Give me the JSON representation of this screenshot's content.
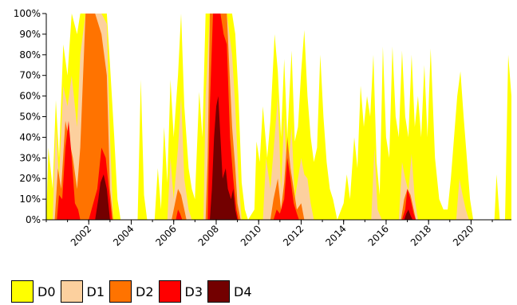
{
  "chart_data": {
    "type": "area",
    "stacked": false,
    "x_unit": "year",
    "xlim": [
      2000.0,
      2021.9
    ],
    "ylim": [
      0,
      100
    ],
    "y_ticks": [
      "0%",
      "10%",
      "20%",
      "30%",
      "40%",
      "50%",
      "60%",
      "70%",
      "80%",
      "90%",
      "100%"
    ],
    "x_ticks": [
      "2002",
      "2004",
      "2006",
      "2008",
      "2010",
      "2012",
      "2014",
      "2016",
      "2018",
      "2020"
    ],
    "grid": false,
    "legend_position": "bottom",
    "legend": [
      "D0",
      "D1",
      "D2",
      "D3",
      "D4"
    ],
    "colors": [
      "#ffff00",
      "#fcd09e",
      "#ff7300",
      "#ff0000",
      "#730000"
    ],
    "series": [
      {
        "name": "D0",
        "points": [
          [
            2000.0,
            0
          ],
          [
            2000.1,
            35
          ],
          [
            2000.3,
            15
          ],
          [
            2000.45,
            58
          ],
          [
            2000.6,
            30
          ],
          [
            2000.8,
            85
          ],
          [
            2001.0,
            70
          ],
          [
            2001.2,
            100
          ],
          [
            2001.45,
            90
          ],
          [
            2001.6,
            100
          ],
          [
            2001.85,
            100
          ],
          [
            2002.0,
            100
          ],
          [
            2002.3,
            100
          ],
          [
            2002.6,
            100
          ],
          [
            2002.85,
            100
          ],
          [
            2003.0,
            75
          ],
          [
            2003.2,
            40
          ],
          [
            2003.35,
            10
          ],
          [
            2003.5,
            0
          ],
          [
            2004.3,
            0
          ],
          [
            2004.45,
            68
          ],
          [
            2004.6,
            12
          ],
          [
            2004.75,
            0
          ],
          [
            2005.1,
            0
          ],
          [
            2005.25,
            25
          ],
          [
            2005.4,
            5
          ],
          [
            2005.55,
            45
          ],
          [
            2005.7,
            18
          ],
          [
            2005.85,
            68
          ],
          [
            2006.0,
            40
          ],
          [
            2006.2,
            70
          ],
          [
            2006.35,
            100
          ],
          [
            2006.5,
            55
          ],
          [
            2006.7,
            25
          ],
          [
            2006.85,
            15
          ],
          [
            2007.0,
            10
          ],
          [
            2007.2,
            62
          ],
          [
            2007.35,
            40
          ],
          [
            2007.5,
            100
          ],
          [
            2007.7,
            100
          ],
          [
            2008.0,
            100
          ],
          [
            2008.3,
            100
          ],
          [
            2008.5,
            100
          ],
          [
            2008.75,
            100
          ],
          [
            2008.9,
            90
          ],
          [
            2009.05,
            60
          ],
          [
            2009.2,
            18
          ],
          [
            2009.35,
            5
          ],
          [
            2009.5,
            0
          ],
          [
            2009.8,
            5
          ],
          [
            2009.9,
            38
          ],
          [
            2010.05,
            28
          ],
          [
            2010.2,
            55
          ],
          [
            2010.4,
            30
          ],
          [
            2010.55,
            48
          ],
          [
            2010.75,
            90
          ],
          [
            2010.9,
            72
          ],
          [
            2011.05,
            40
          ],
          [
            2011.2,
            78
          ],
          [
            2011.35,
            40
          ],
          [
            2011.55,
            82
          ],
          [
            2011.7,
            38
          ],
          [
            2011.85,
            45
          ],
          [
            2012.0,
            72
          ],
          [
            2012.15,
            92
          ],
          [
            2012.3,
            60
          ],
          [
            2012.45,
            40
          ],
          [
            2012.6,
            28
          ],
          [
            2012.75,
            35
          ],
          [
            2012.9,
            80
          ],
          [
            2013.05,
            50
          ],
          [
            2013.2,
            28
          ],
          [
            2013.35,
            15
          ],
          [
            2013.5,
            10
          ],
          [
            2013.7,
            0
          ],
          [
            2014.0,
            8
          ],
          [
            2014.15,
            22
          ],
          [
            2014.3,
            10
          ],
          [
            2014.5,
            40
          ],
          [
            2014.65,
            25
          ],
          [
            2014.8,
            65
          ],
          [
            2014.95,
            45
          ],
          [
            2015.1,
            60
          ],
          [
            2015.25,
            50
          ],
          [
            2015.4,
            80
          ],
          [
            2015.55,
            28
          ],
          [
            2015.7,
            12
          ],
          [
            2015.85,
            84
          ],
          [
            2016.0,
            40
          ],
          [
            2016.15,
            30
          ],
          [
            2016.3,
            84
          ],
          [
            2016.45,
            50
          ],
          [
            2016.6,
            40
          ],
          [
            2016.75,
            82
          ],
          [
            2016.9,
            50
          ],
          [
            2017.05,
            40
          ],
          [
            2017.2,
            80
          ],
          [
            2017.35,
            45
          ],
          [
            2017.5,
            60
          ],
          [
            2017.65,
            40
          ],
          [
            2017.8,
            75
          ],
          [
            2017.95,
            40
          ],
          [
            2018.1,
            83
          ],
          [
            2018.3,
            30
          ],
          [
            2018.5,
            10
          ],
          [
            2018.7,
            5
          ],
          [
            2018.9,
            5
          ],
          [
            2019.05,
            20
          ],
          [
            2019.2,
            40
          ],
          [
            2019.35,
            60
          ],
          [
            2019.5,
            72
          ],
          [
            2019.65,
            50
          ],
          [
            2019.8,
            30
          ],
          [
            2019.95,
            10
          ],
          [
            2020.1,
            0
          ],
          [
            2021.1,
            0
          ],
          [
            2021.2,
            22
          ],
          [
            2021.35,
            0
          ],
          [
            2021.6,
            0
          ],
          [
            2021.75,
            80
          ],
          [
            2021.9,
            60
          ]
        ]
      },
      {
        "name": "D1",
        "points": [
          [
            2000.0,
            0
          ],
          [
            2000.3,
            0
          ],
          [
            2000.45,
            45
          ],
          [
            2000.6,
            20
          ],
          [
            2000.8,
            65
          ],
          [
            2001.0,
            55
          ],
          [
            2001.2,
            70
          ],
          [
            2001.45,
            45
          ],
          [
            2001.6,
            80
          ],
          [
            2001.85,
            100
          ],
          [
            2002.0,
            100
          ],
          [
            2002.3,
            100
          ],
          [
            2002.6,
            100
          ],
          [
            2002.85,
            95
          ],
          [
            2003.0,
            40
          ],
          [
            2003.15,
            0
          ],
          [
            2005.7,
            0
          ],
          [
            2005.85,
            30
          ],
          [
            2006.0,
            10
          ],
          [
            2006.2,
            35
          ],
          [
            2006.35,
            60
          ],
          [
            2006.5,
            20
          ],
          [
            2006.7,
            5
          ],
          [
            2006.85,
            0
          ],
          [
            2007.4,
            0
          ],
          [
            2007.5,
            60
          ],
          [
            2007.7,
            100
          ],
          [
            2008.0,
            100
          ],
          [
            2008.3,
            100
          ],
          [
            2008.5,
            100
          ],
          [
            2008.75,
            80
          ],
          [
            2008.9,
            55
          ],
          [
            2009.05,
            20
          ],
          [
            2009.2,
            0
          ],
          [
            2010.2,
            0
          ],
          [
            2010.35,
            30
          ],
          [
            2010.55,
            15
          ],
          [
            2010.75,
            40
          ],
          [
            2010.9,
            60
          ],
          [
            2011.05,
            15
          ],
          [
            2011.2,
            50
          ],
          [
            2011.35,
            20
          ],
          [
            2011.55,
            45
          ],
          [
            2011.7,
            10
          ],
          [
            2011.85,
            20
          ],
          [
            2012.0,
            30
          ],
          [
            2012.15,
            22
          ],
          [
            2012.3,
            20
          ],
          [
            2012.45,
            8
          ],
          [
            2012.6,
            0
          ],
          [
            2015.3,
            0
          ],
          [
            2015.45,
            35
          ],
          [
            2015.6,
            5
          ],
          [
            2015.8,
            0
          ],
          [
            2016.6,
            0
          ],
          [
            2016.75,
            28
          ],
          [
            2016.9,
            20
          ],
          [
            2017.05,
            14
          ],
          [
            2017.2,
            32
          ],
          [
            2017.35,
            10
          ],
          [
            2017.5,
            0
          ],
          [
            2019.3,
            0
          ],
          [
            2019.45,
            20
          ],
          [
            2019.6,
            12
          ],
          [
            2019.75,
            5
          ],
          [
            2019.9,
            0
          ],
          [
            2021.9,
            0
          ]
        ]
      },
      {
        "name": "D2",
        "points": [
          [
            2000.0,
            0
          ],
          [
            2000.4,
            0
          ],
          [
            2000.55,
            25
          ],
          [
            2000.7,
            15
          ],
          [
            2000.9,
            48
          ],
          [
            2001.05,
            40
          ],
          [
            2001.25,
            30
          ],
          [
            2001.45,
            15
          ],
          [
            2001.6,
            35
          ],
          [
            2001.85,
            100
          ],
          [
            2002.0,
            100
          ],
          [
            2002.3,
            100
          ],
          [
            2002.6,
            90
          ],
          [
            2002.85,
            70
          ],
          [
            2003.0,
            15
          ],
          [
            2003.15,
            0
          ],
          [
            2005.9,
            0
          ],
          [
            2006.1,
            10
          ],
          [
            2006.2,
            15
          ],
          [
            2006.35,
            12
          ],
          [
            2006.5,
            5
          ],
          [
            2006.6,
            0
          ],
          [
            2007.5,
            0
          ],
          [
            2007.6,
            30
          ],
          [
            2007.7,
            100
          ],
          [
            2008.0,
            100
          ],
          [
            2008.3,
            100
          ],
          [
            2008.5,
            100
          ],
          [
            2008.75,
            45
          ],
          [
            2008.9,
            25
          ],
          [
            2009.0,
            8
          ],
          [
            2009.15,
            0
          ],
          [
            2010.55,
            0
          ],
          [
            2010.7,
            10
          ],
          [
            2010.9,
            20
          ],
          [
            2011.05,
            5
          ],
          [
            2011.2,
            18
          ],
          [
            2011.35,
            40
          ],
          [
            2011.5,
            25
          ],
          [
            2011.65,
            15
          ],
          [
            2011.8,
            5
          ],
          [
            2012.0,
            8
          ],
          [
            2012.15,
            0
          ],
          [
            2016.7,
            0
          ],
          [
            2016.85,
            10
          ],
          [
            2017.0,
            15
          ],
          [
            2017.15,
            12
          ],
          [
            2017.3,
            5
          ],
          [
            2017.4,
            0
          ],
          [
            2021.9,
            0
          ]
        ]
      },
      {
        "name": "D3",
        "points": [
          [
            2000.0,
            0
          ],
          [
            2000.5,
            0
          ],
          [
            2000.6,
            12
          ],
          [
            2000.75,
            10
          ],
          [
            2000.9,
            35
          ],
          [
            2001.05,
            48
          ],
          [
            2001.2,
            30
          ],
          [
            2001.35,
            8
          ],
          [
            2001.5,
            5
          ],
          [
            2001.6,
            0
          ],
          [
            2002.0,
            0
          ],
          [
            2002.4,
            15
          ],
          [
            2002.6,
            35
          ],
          [
            2002.8,
            30
          ],
          [
            2003.0,
            10
          ],
          [
            2003.1,
            0
          ],
          [
            2006.1,
            0
          ],
          [
            2006.2,
            5
          ],
          [
            2006.3,
            3
          ],
          [
            2006.4,
            0
          ],
          [
            2007.6,
            0
          ],
          [
            2007.7,
            55
          ],
          [
            2007.85,
            100
          ],
          [
            2008.0,
            100
          ],
          [
            2008.2,
            100
          ],
          [
            2008.35,
            90
          ],
          [
            2008.5,
            85
          ],
          [
            2008.65,
            40
          ],
          [
            2008.8,
            20
          ],
          [
            2008.95,
            5
          ],
          [
            2009.05,
            0
          ],
          [
            2010.7,
            0
          ],
          [
            2010.85,
            5
          ],
          [
            2011.0,
            3
          ],
          [
            2011.2,
            10
          ],
          [
            2011.35,
            30
          ],
          [
            2011.5,
            20
          ],
          [
            2011.65,
            8
          ],
          [
            2011.8,
            3
          ],
          [
            2011.9,
            0
          ],
          [
            2016.75,
            0
          ],
          [
            2016.9,
            5
          ],
          [
            2017.0,
            15
          ],
          [
            2017.15,
            10
          ],
          [
            2017.3,
            3
          ],
          [
            2017.4,
            0
          ],
          [
            2021.9,
            0
          ]
        ]
      },
      {
        "name": "D4",
        "points": [
          [
            2000.0,
            0
          ],
          [
            2002.3,
            0
          ],
          [
            2002.45,
            10
          ],
          [
            2002.55,
            18
          ],
          [
            2002.7,
            22
          ],
          [
            2002.85,
            15
          ],
          [
            2003.0,
            0
          ],
          [
            2007.7,
            0
          ],
          [
            2007.8,
            15
          ],
          [
            2007.9,
            40
          ],
          [
            2008.0,
            55
          ],
          [
            2008.1,
            60
          ],
          [
            2008.2,
            40
          ],
          [
            2008.3,
            20
          ],
          [
            2008.45,
            25
          ],
          [
            2008.55,
            15
          ],
          [
            2008.7,
            10
          ],
          [
            2008.8,
            15
          ],
          [
            2008.9,
            5
          ],
          [
            2009.0,
            0
          ],
          [
            2016.85,
            0
          ],
          [
            2016.95,
            3
          ],
          [
            2017.05,
            5
          ],
          [
            2017.15,
            2
          ],
          [
            2017.25,
            0
          ],
          [
            2021.9,
            0
          ]
        ]
      }
    ]
  }
}
